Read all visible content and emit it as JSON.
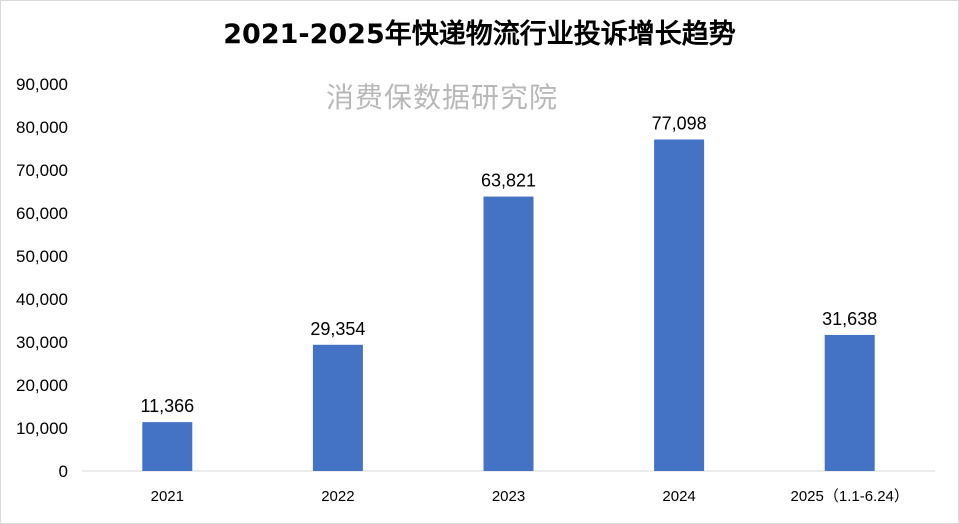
{
  "watermark": "消费保数据研究院",
  "chart_data": {
    "type": "bar",
    "title": "2021-2025年快递物流行业投诉增长趋势",
    "categories": [
      "2021",
      "2022",
      "2023",
      "2024",
      "2025（1.1-6.24）"
    ],
    "values": [
      11366,
      29354,
      63821,
      77098,
      31638
    ],
    "value_labels": [
      "11,366",
      "29,354",
      "63,821",
      "77,098",
      "31,638"
    ],
    "ylim": [
      0,
      90000
    ],
    "yticks": [
      "0",
      "10,000",
      "20,000",
      "30,000",
      "40,000",
      "50,000",
      "60,000",
      "70,000",
      "80,000",
      "90,000"
    ],
    "xlabel": "",
    "ylabel": "",
    "grid": false,
    "bar_color": "#4472c4"
  }
}
